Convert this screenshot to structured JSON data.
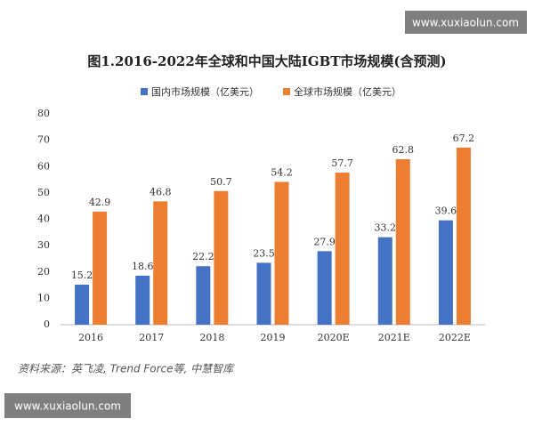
{
  "chart_data": {
    "type": "bar",
    "title": "图1.2016-2022年全球和中国大陆IGBT市场规模(含预测)",
    "categories": [
      "2016",
      "2017",
      "2018",
      "2019",
      "2020E",
      "2021E",
      "2022E"
    ],
    "series": [
      {
        "name": "国内市场规模（亿美元）",
        "color": "#4472c4",
        "values": [
          15.2,
          18.6,
          22.2,
          23.5,
          27.9,
          33.2,
          39.6
        ]
      },
      {
        "name": "全球市场规模（亿美元）",
        "color": "#ed7d31",
        "values": [
          42.9,
          46.8,
          50.7,
          54.2,
          57.7,
          62.8,
          67.2
        ]
      }
    ],
    "ylim": [
      0,
      80
    ],
    "yticks": [
      0,
      10,
      20,
      30,
      40,
      50,
      60,
      70,
      80
    ],
    "grid": false,
    "source": "资料来源：英飞凌, Trend Force等, 中慧智库"
  },
  "watermark_top": "www.xuxiaolun.com",
  "watermark_bottom": "www.xuxiaolun.com"
}
